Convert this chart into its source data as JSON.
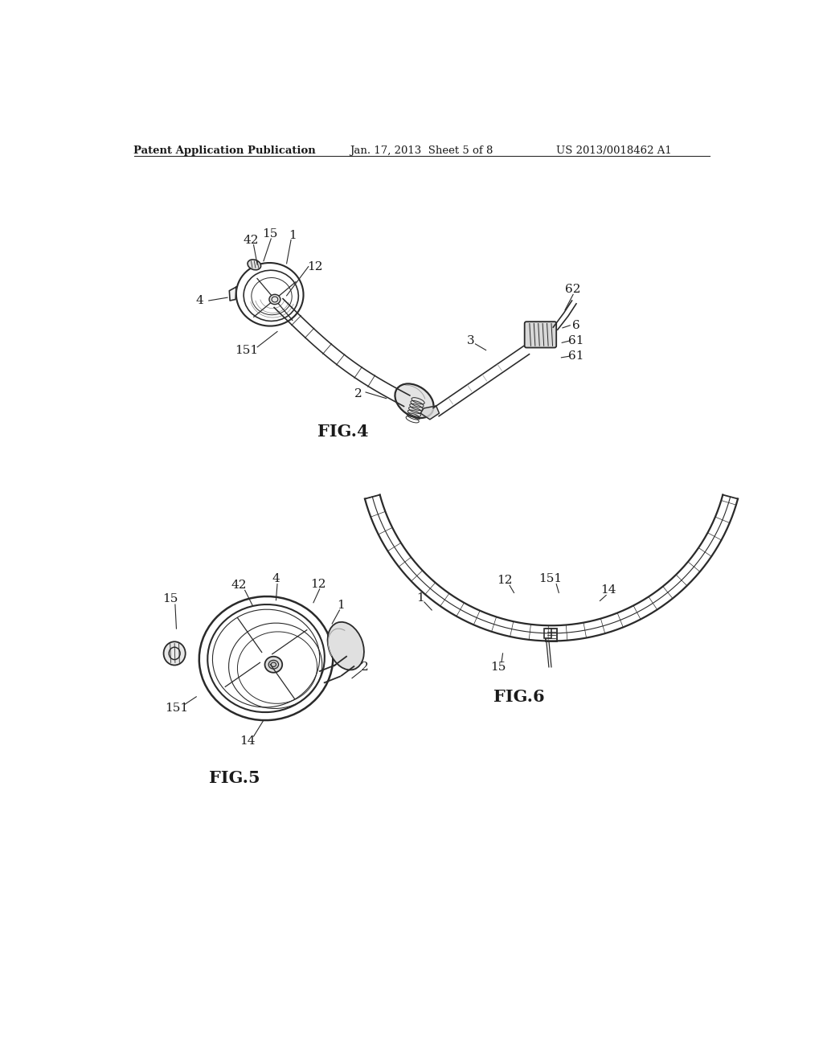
{
  "background_color": "#ffffff",
  "header_left": "Patent Application Publication",
  "header_center": "Jan. 17, 2013  Sheet 5 of 8",
  "header_right": "US 2013/0018462 A1",
  "fig4_label": "FIG.4",
  "fig5_label": "FIG.5",
  "fig6_label": "FIG.6",
  "line_color": "#2a2a2a",
  "text_color": "#1a1a1a",
  "header_fontsize": 9.5,
  "label_fontsize": 11,
  "figlabel_fontsize": 15
}
